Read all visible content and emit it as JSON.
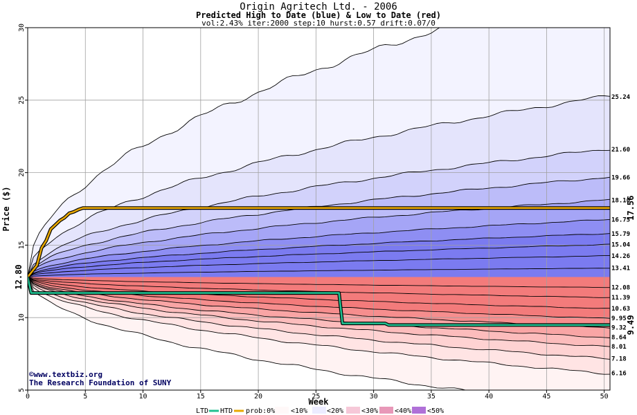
{
  "chart_data": {
    "type": "area",
    "title": "Origin Agritech Ltd. - 2006",
    "subtitle": "Predicted High to Date (blue) &  Low to Date (red)",
    "params": "vol:2.43% iter:2000 step:10 hurst:0.57 drift:0.07/0",
    "xlabel": "Week",
    "ylabel": "Price ($)",
    "xlim": [
      0,
      50.5
    ],
    "ylim": [
      5,
      30
    ],
    "x_ticks": [
      0,
      5,
      10,
      15,
      20,
      25,
      30,
      35,
      40,
      45,
      50
    ],
    "y_ticks": [
      5,
      10,
      15,
      20,
      25,
      30
    ],
    "start_price": "12.80",
    "htd_current": "17.56",
    "ltd_current": "9.49",
    "colors": {
      "blue_bands": [
        "#f3f3ff",
        "#e4e4fc",
        "#d2d2fb",
        "#bcbcf9",
        "#a5a5f6",
        "#8e8ef3",
        "#7b7bf0"
      ],
      "red_bands": [
        "#fff3f3",
        "#ffe4e4",
        "#fed2d2",
        "#fcbcbc",
        "#f9a5a5",
        "#f68e8e",
        "#f37b7b"
      ],
      "htd_line": "#e8a800",
      "ltd_line": "#20c090",
      "start_label": "#008800",
      "htd_label": "#b08800",
      "ltd_label": "#00a060"
    },
    "high_quantiles": [
      {
        "label": "",
        "end": 33.0
      },
      {
        "label": "25.24",
        "end": 25.24
      },
      {
        "label": "21.60",
        "end": 21.6
      },
      {
        "label": "19.66",
        "end": 19.66
      },
      {
        "label": "18.10",
        "end": 18.1
      },
      {
        "label": "16.75",
        "end": 16.75
      },
      {
        "label": "15.79",
        "end": 15.79
      },
      {
        "label": "15.04",
        "end": 15.04
      },
      {
        "label": "14.26",
        "end": 14.26
      },
      {
        "label": "13.41",
        "end": 13.41
      }
    ],
    "low_quantiles": [
      {
        "label": "12.08",
        "end": 12.08
      },
      {
        "label": "11.39",
        "end": 11.39
      },
      {
        "label": "10.63",
        "end": 10.63
      },
      {
        "label": "9.95",
        "end": 9.95
      },
      {
        "label": "9.32",
        "end": 9.32
      },
      {
        "label": "8.64",
        "end": 8.64
      },
      {
        "label": "8.01",
        "end": 8.01
      },
      {
        "label": "7.18",
        "end": 7.18
      },
      {
        "label": "6.16",
        "end": 6.16
      },
      {
        "label": "",
        "end": 3.8
      }
    ],
    "series": [
      {
        "name": "HTD",
        "x": [
          0,
          0.8,
          1.2,
          1.6,
          2.0,
          2.4,
          2.8,
          3.2,
          3.6,
          4.0,
          4.4,
          4.8,
          50.5
        ],
        "y": [
          12.8,
          13.6,
          14.8,
          15.3,
          16.1,
          16.4,
          16.7,
          16.9,
          17.2,
          17.3,
          17.45,
          17.56,
          17.56
        ]
      },
      {
        "name": "LTD",
        "x": [
          0,
          0.3,
          1.0,
          2.5,
          5.0,
          27.0,
          27.3,
          31.0,
          31.3,
          50.5
        ],
        "y": [
          12.8,
          11.7,
          11.7,
          11.7,
          11.7,
          11.7,
          9.6,
          9.6,
          9.49,
          9.49
        ]
      }
    ]
  },
  "legend": {
    "ltd": "LTD",
    "htd": "HTD",
    "prob": "prob:0%",
    "b10": "<10%",
    "b20": "<20%",
    "b30": "<30%",
    "b40": "<40%",
    "b50": "<50%"
  },
  "credit": {
    "line1": "©www.textbiz.org",
    "line2": "The Research Foundation of SUNY"
  }
}
